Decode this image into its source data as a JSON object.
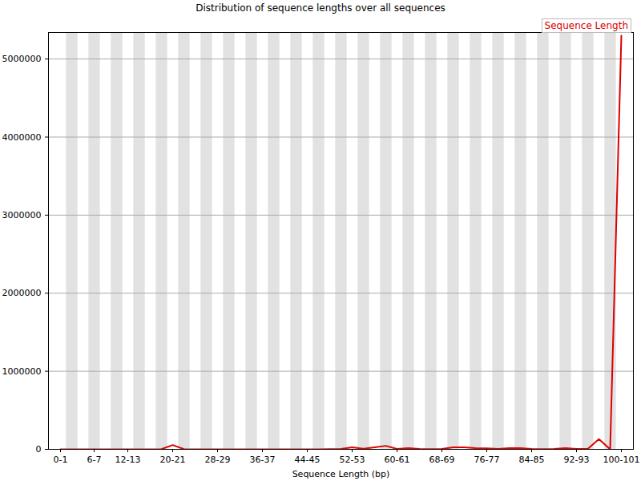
{
  "chart_data": {
    "type": "line",
    "title": "Distribution of sequence lengths over all sequences",
    "x_label": "Sequence Length (bp)",
    "categories": [
      "0-1",
      null,
      null,
      "6-7",
      null,
      null,
      "12-13",
      null,
      null,
      null,
      "20-21",
      null,
      null,
      null,
      "28-29",
      null,
      null,
      null,
      "36-37",
      null,
      null,
      null,
      "44-45",
      null,
      null,
      null,
      "52-53",
      null,
      null,
      null,
      "60-61",
      null,
      null,
      null,
      "68-69",
      null,
      null,
      null,
      "76-77",
      null,
      null,
      null,
      "84-85",
      null,
      null,
      null,
      "92-93",
      null,
      null,
      null,
      "100-101"
    ],
    "series": [
      {
        "name": "Sequence Length",
        "color": "#dd0000",
        "values": [
          0,
          0,
          0,
          0,
          0,
          0,
          0,
          0,
          0,
          2000,
          55000,
          3000,
          0,
          0,
          0,
          0,
          0,
          0,
          0,
          0,
          0,
          0,
          0,
          0,
          2000,
          5000,
          25000,
          8000,
          25000,
          45000,
          5000,
          15000,
          5000,
          3000,
          5000,
          25000,
          25000,
          15000,
          12000,
          5000,
          15000,
          15000,
          5000,
          3000,
          5000,
          15000,
          5000,
          5000,
          130000,
          0,
          5300000
        ]
      }
    ],
    "ylim": [
      0,
      5340000
    ],
    "yticks": [
      0,
      1000000,
      2000000,
      3000000,
      4000000,
      5000000
    ],
    "grid": true,
    "legend": "top-right"
  }
}
